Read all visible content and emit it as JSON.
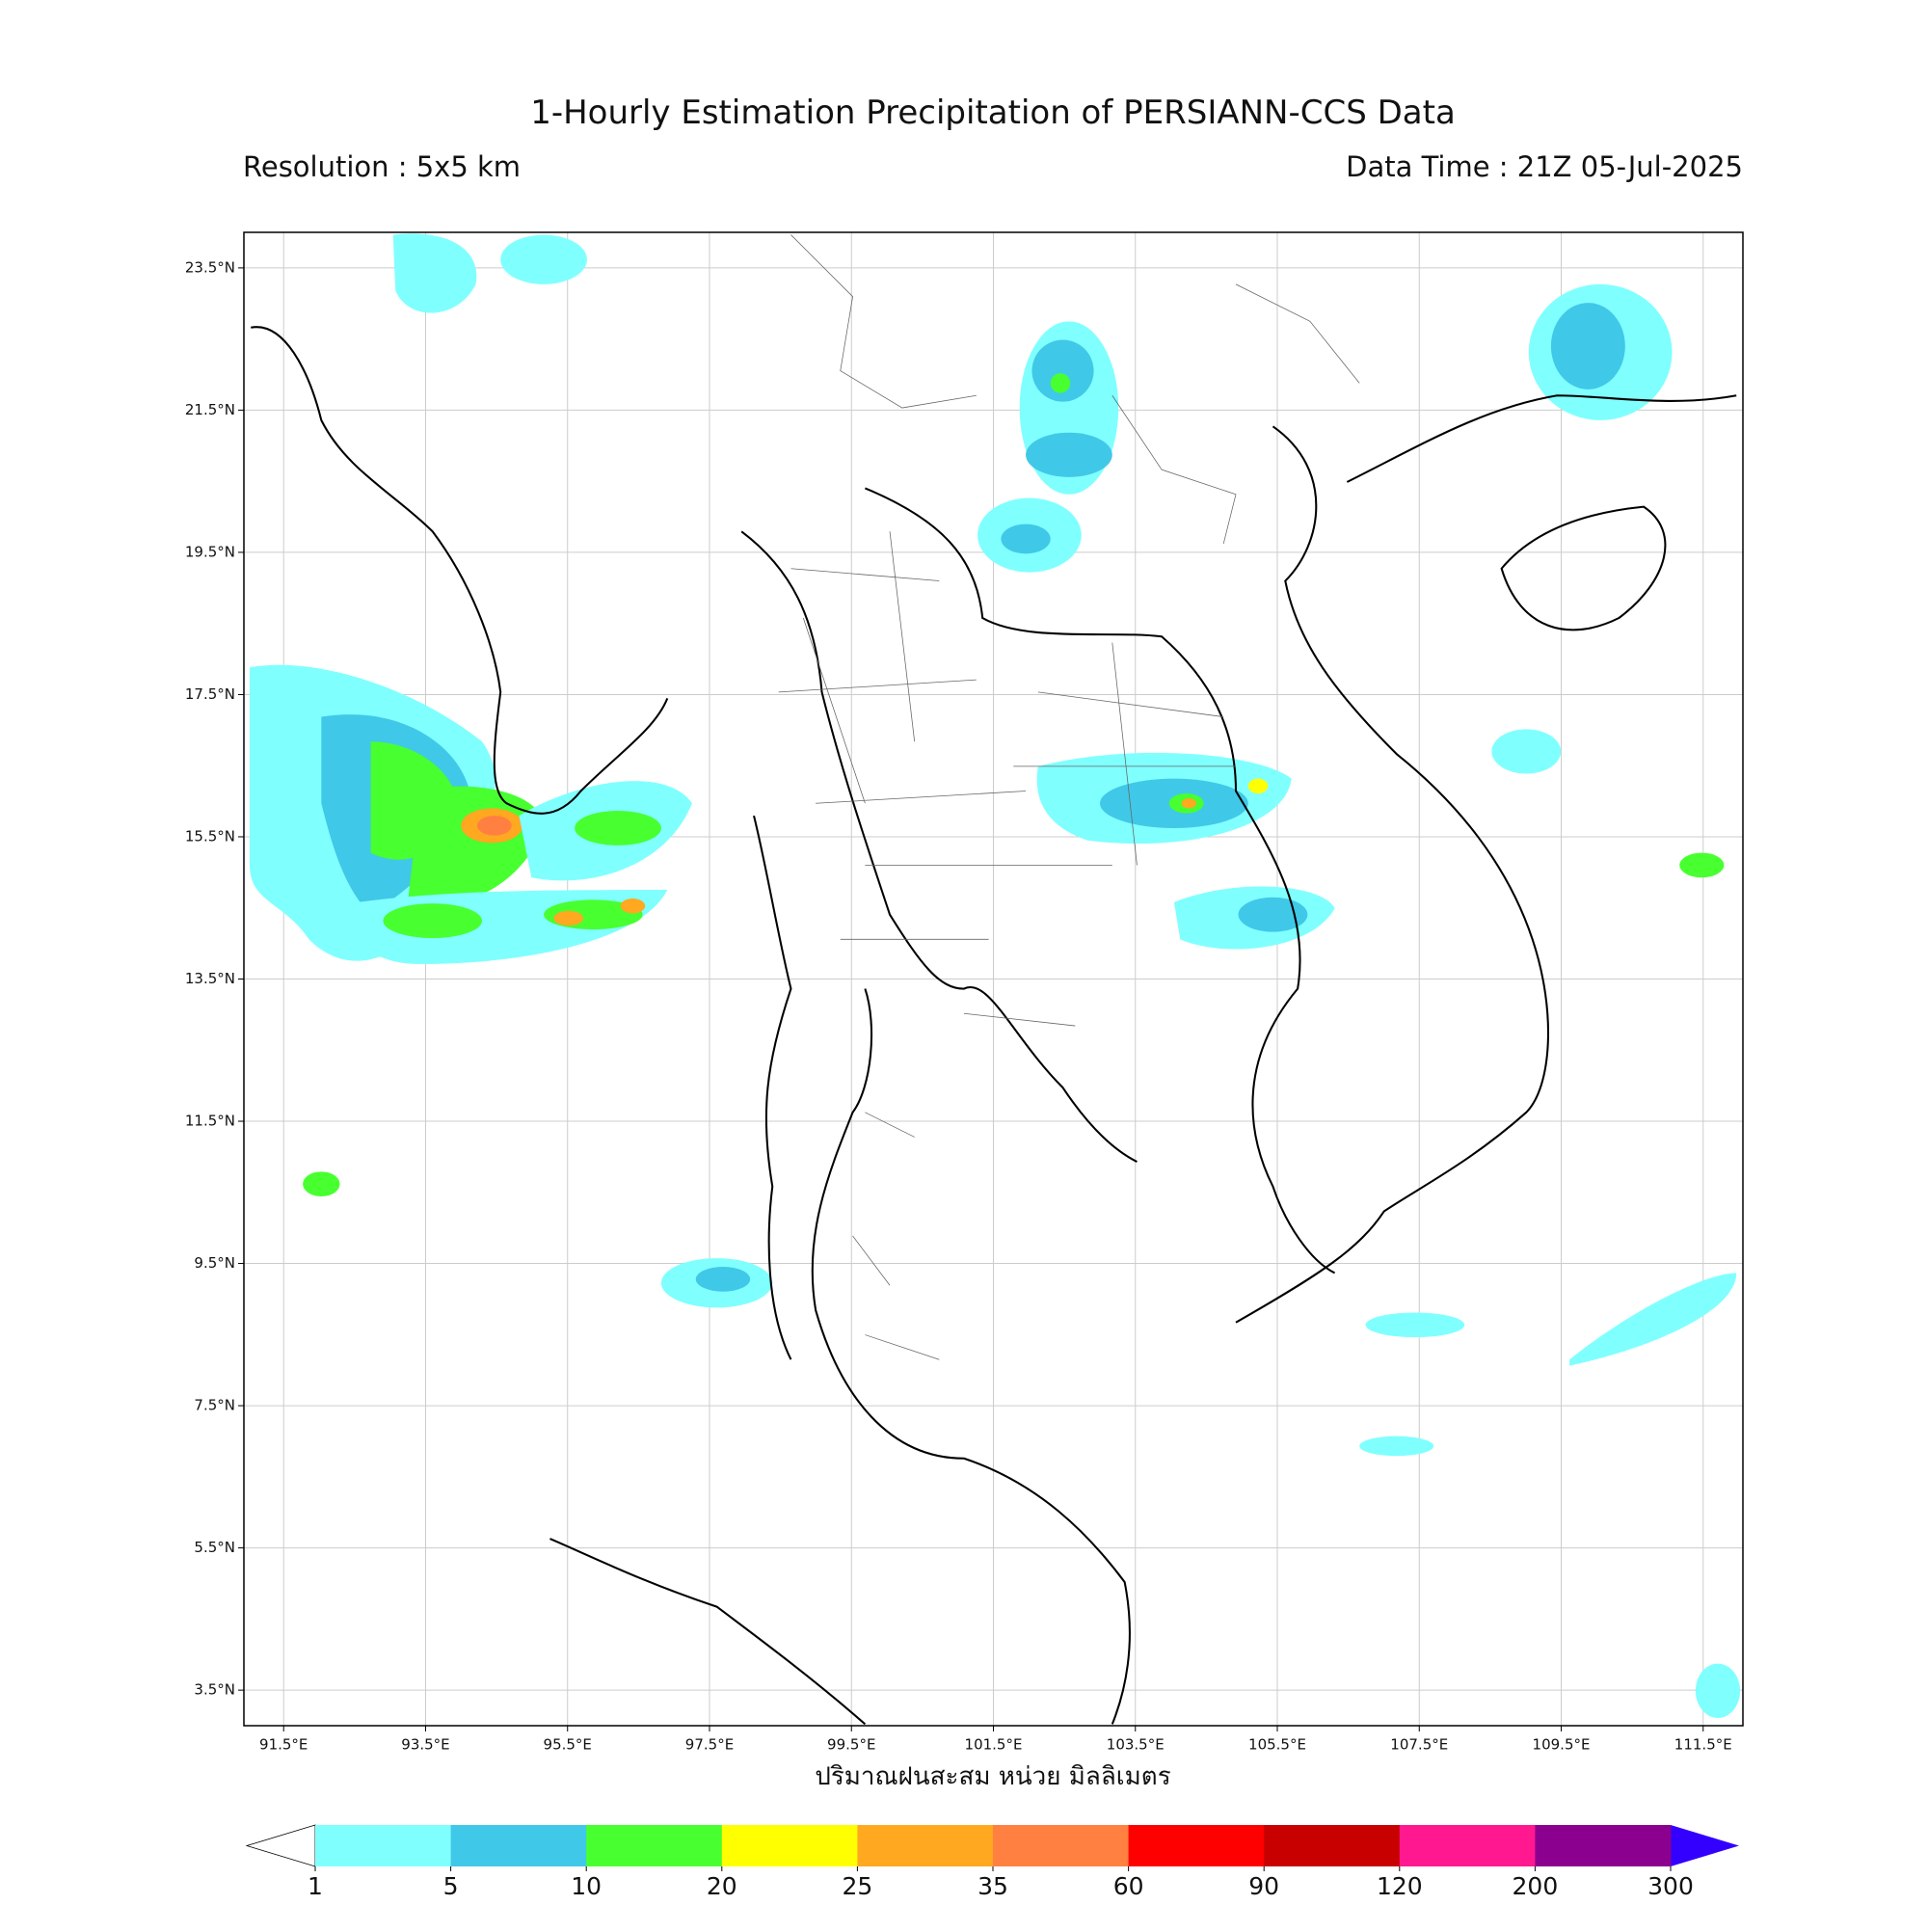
{
  "header": {
    "title": "1-Hourly Estimation Precipitation of PERSIANN-CCS Data",
    "resolution": "Resolution : 5x5 km",
    "data_time": "Data Time : 21Z 05-Jul-2025"
  },
  "map": {
    "lon_range": [
      90.94,
      112.06
    ],
    "lat_range": [
      3.0,
      24.0
    ],
    "lon_ticks": [
      {
        "value": 91.5,
        "label": "91.5°E"
      },
      {
        "value": 93.5,
        "label": "93.5°E"
      },
      {
        "value": 95.5,
        "label": "95.5°E"
      },
      {
        "value": 97.5,
        "label": "97.5°E"
      },
      {
        "value": 99.5,
        "label": "99.5°E"
      },
      {
        "value": 101.5,
        "label": "101.5°E"
      },
      {
        "value": 103.5,
        "label": "103.5°E"
      },
      {
        "value": 105.5,
        "label": "105.5°E"
      },
      {
        "value": 107.5,
        "label": "107.5°E"
      },
      {
        "value": 109.5,
        "label": "109.5°E"
      },
      {
        "value": 111.5,
        "label": "111.5°E"
      }
    ],
    "lat_ticks": [
      {
        "value": 23.5,
        "label": "23.5°N"
      },
      {
        "value": 21.5,
        "label": "21.5°N"
      },
      {
        "value": 19.5,
        "label": "19.5°N"
      },
      {
        "value": 17.5,
        "label": "17.5°N"
      },
      {
        "value": 15.5,
        "label": "15.5°N"
      },
      {
        "value": 13.5,
        "label": "13.5°N"
      },
      {
        "value": 11.5,
        "label": "11.5°N"
      },
      {
        "value": 9.5,
        "label": "9.5°N"
      },
      {
        "value": 7.5,
        "label": "7.5°N"
      },
      {
        "value": 5.5,
        "label": "5.5°N"
      },
      {
        "value": 3.5,
        "label": "3.5°N"
      }
    ],
    "grid": true
  },
  "colorbar": {
    "label": "ปริมาณฝนสะสม หน่วย มิลลิเมตร",
    "levels": [
      1,
      5,
      10,
      20,
      25,
      35,
      60,
      90,
      120,
      200,
      300
    ],
    "colors": [
      "#80ffff",
      "#40c8e8",
      "#48ff30",
      "#ffff00",
      "#ffa820",
      "#ff8040",
      "#ff0000",
      "#c80000",
      "#ff1890",
      "#8c0090"
    ],
    "under_color": "#ffffff",
    "over_color": "#3300ff"
  }
}
